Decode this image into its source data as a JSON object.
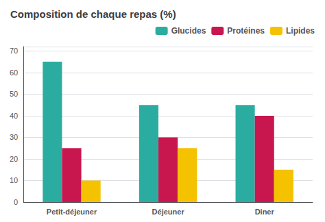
{
  "chart_data": {
    "type": "bar",
    "title": "Composition de chaque repas (%)",
    "categories": [
      "Petit-déjeuner",
      "Déjeuner",
      "Diner"
    ],
    "series": [
      {
        "name": "Glucides",
        "color": "#2aada0",
        "values": [
          65,
          45,
          45
        ]
      },
      {
        "name": "Protéines",
        "color": "#c8174e",
        "values": [
          25,
          30,
          40
        ]
      },
      {
        "name": "Lipides",
        "color": "#f5c200",
        "values": [
          10,
          25,
          15
        ]
      }
    ],
    "ylim": [
      0,
      72
    ],
    "yticks": [
      0,
      10,
      20,
      30,
      40,
      50,
      60,
      70
    ],
    "grid": true,
    "legend": "upper right"
  }
}
